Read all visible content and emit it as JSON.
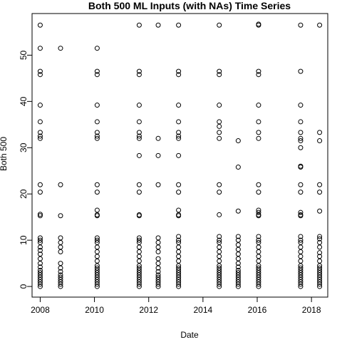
{
  "chart_data": {
    "type": "scatter",
    "title": "Both 500 ML Inputs (with NAs) Time Series",
    "xlabel": "Date",
    "ylabel": "Both 500",
    "x_axis": {
      "ticks": [
        2008,
        2010,
        2012,
        2014,
        2016,
        2018
      ],
      "range": [
        2007.7,
        2018.6
      ]
    },
    "y_axis": {
      "ticks": [
        0,
        10,
        20,
        30,
        40,
        50
      ],
      "range": [
        -2.3,
        59
      ]
    },
    "grid": false,
    "legend": "none",
    "marker": "open-circle",
    "series": [
      {
        "points": [
          [
            2008.0,
            56.5
          ],
          [
            2008.0,
            51.5
          ],
          [
            2008.0,
            46.5
          ],
          [
            2008.0,
            45.8
          ],
          [
            2008.0,
            39.2
          ],
          [
            2008.0,
            35.6
          ],
          [
            2008.0,
            33.3
          ],
          [
            2008.0,
            32.5
          ],
          [
            2008.0,
            32.0
          ],
          [
            2008.0,
            22.0
          ],
          [
            2008.0,
            20.4
          ],
          [
            2008.0,
            15.6
          ],
          [
            2008.0,
            15.3
          ],
          [
            2008.0,
            10.5
          ],
          [
            2008.0,
            10.0
          ],
          [
            2008.0,
            9.5
          ],
          [
            2008.0,
            8.5
          ],
          [
            2008.0,
            7.8
          ],
          [
            2008.0,
            7.0
          ],
          [
            2008.0,
            6.0
          ],
          [
            2008.0,
            5.0
          ],
          [
            2008.0,
            4.2
          ],
          [
            2008.0,
            3.5
          ],
          [
            2008.0,
            3.0
          ],
          [
            2008.0,
            2.5
          ],
          [
            2008.0,
            2.0
          ],
          [
            2008.0,
            1.5
          ],
          [
            2008.0,
            1.0
          ],
          [
            2008.0,
            0.5
          ],
          [
            2008.0,
            0.0
          ],
          [
            2008.75,
            51.5
          ],
          [
            2008.75,
            22.0
          ],
          [
            2008.75,
            15.3
          ],
          [
            2008.75,
            10.5
          ],
          [
            2008.75,
            9.5
          ],
          [
            2008.75,
            8.5
          ],
          [
            2008.75,
            7.5
          ],
          [
            2008.75,
            5.0
          ],
          [
            2008.75,
            4.0
          ],
          [
            2008.75,
            3.2
          ],
          [
            2008.75,
            2.5
          ],
          [
            2008.75,
            2.0
          ],
          [
            2008.75,
            1.5
          ],
          [
            2008.75,
            1.0
          ],
          [
            2008.75,
            0.5
          ],
          [
            2008.75,
            0.0
          ],
          [
            2010.1,
            51.5
          ],
          [
            2010.1,
            46.5
          ],
          [
            2010.1,
            45.8
          ],
          [
            2010.1,
            39.2
          ],
          [
            2010.1,
            35.6
          ],
          [
            2010.1,
            33.3
          ],
          [
            2010.1,
            32.5
          ],
          [
            2010.1,
            32.0
          ],
          [
            2010.1,
            22.0
          ],
          [
            2010.1,
            20.4
          ],
          [
            2010.1,
            16.5
          ],
          [
            2010.1,
            15.5
          ],
          [
            2010.1,
            15.3
          ],
          [
            2010.1,
            10.5
          ],
          [
            2010.1,
            10.0
          ],
          [
            2010.1,
            9.5
          ],
          [
            2010.1,
            8.5
          ],
          [
            2010.1,
            7.5
          ],
          [
            2010.1,
            6.5
          ],
          [
            2010.1,
            5.5
          ],
          [
            2010.1,
            4.5
          ],
          [
            2010.1,
            4.0
          ],
          [
            2010.1,
            3.5
          ],
          [
            2010.1,
            3.0
          ],
          [
            2010.1,
            2.5
          ],
          [
            2010.1,
            2.0
          ],
          [
            2010.1,
            1.5
          ],
          [
            2010.1,
            1.0
          ],
          [
            2010.1,
            0.5
          ],
          [
            2010.1,
            0.0
          ],
          [
            2011.65,
            56.5
          ],
          [
            2011.65,
            46.5
          ],
          [
            2011.65,
            45.8
          ],
          [
            2011.65,
            39.2
          ],
          [
            2011.65,
            35.6
          ],
          [
            2011.65,
            33.3
          ],
          [
            2011.65,
            32.5
          ],
          [
            2011.65,
            32.0
          ],
          [
            2011.65,
            28.3
          ],
          [
            2011.65,
            22.0
          ],
          [
            2011.65,
            20.4
          ],
          [
            2011.65,
            15.5
          ],
          [
            2011.65,
            15.3
          ],
          [
            2011.65,
            10.5
          ],
          [
            2011.65,
            10.0
          ],
          [
            2011.65,
            9.5
          ],
          [
            2011.65,
            8.5
          ],
          [
            2011.65,
            7.5
          ],
          [
            2011.65,
            6.5
          ],
          [
            2011.65,
            5.5
          ],
          [
            2011.65,
            4.5
          ],
          [
            2011.65,
            4.0
          ],
          [
            2011.65,
            3.5
          ],
          [
            2011.65,
            3.0
          ],
          [
            2011.65,
            2.5
          ],
          [
            2011.65,
            2.0
          ],
          [
            2011.65,
            1.5
          ],
          [
            2011.65,
            1.0
          ],
          [
            2011.65,
            0.5
          ],
          [
            2011.65,
            0.0
          ],
          [
            2012.35,
            56.5
          ],
          [
            2012.35,
            32.0
          ],
          [
            2012.35,
            28.3
          ],
          [
            2012.35,
            22.0
          ],
          [
            2012.35,
            10.5
          ],
          [
            2012.35,
            9.5
          ],
          [
            2012.35,
            8.5
          ],
          [
            2012.35,
            7.5
          ],
          [
            2012.35,
            6.0
          ],
          [
            2012.35,
            5.0
          ],
          [
            2012.35,
            4.0
          ],
          [
            2012.35,
            3.2
          ],
          [
            2012.35,
            2.5
          ],
          [
            2012.35,
            2.0
          ],
          [
            2012.35,
            1.5
          ],
          [
            2012.35,
            1.0
          ],
          [
            2012.35,
            0.5
          ],
          [
            2012.35,
            0.0
          ],
          [
            2013.1,
            56.5
          ],
          [
            2013.1,
            46.5
          ],
          [
            2013.1,
            45.8
          ],
          [
            2013.1,
            39.2
          ],
          [
            2013.1,
            35.6
          ],
          [
            2013.1,
            33.3
          ],
          [
            2013.1,
            32.5
          ],
          [
            2013.1,
            32.0
          ],
          [
            2013.1,
            28.3
          ],
          [
            2013.1,
            22.0
          ],
          [
            2013.1,
            20.4
          ],
          [
            2013.1,
            16.5
          ],
          [
            2013.1,
            15.5
          ],
          [
            2013.1,
            15.3
          ],
          [
            2013.1,
            10.8
          ],
          [
            2013.1,
            10.0
          ],
          [
            2013.1,
            9.5
          ],
          [
            2013.1,
            8.5
          ],
          [
            2013.1,
            7.5
          ],
          [
            2013.1,
            6.5
          ],
          [
            2013.1,
            5.5
          ],
          [
            2013.1,
            4.5
          ],
          [
            2013.1,
            4.0
          ],
          [
            2013.1,
            3.5
          ],
          [
            2013.1,
            3.0
          ],
          [
            2013.1,
            2.5
          ],
          [
            2013.1,
            2.0
          ],
          [
            2013.1,
            1.5
          ],
          [
            2013.1,
            1.0
          ],
          [
            2013.1,
            0.5
          ],
          [
            2013.1,
            0.0
          ],
          [
            2014.6,
            56.5
          ],
          [
            2014.6,
            46.5
          ],
          [
            2014.6,
            45.8
          ],
          [
            2014.6,
            39.2
          ],
          [
            2014.6,
            35.6
          ],
          [
            2014.6,
            34.6
          ],
          [
            2014.6,
            33.3
          ],
          [
            2014.6,
            32.0
          ],
          [
            2014.6,
            22.0
          ],
          [
            2014.6,
            20.4
          ],
          [
            2014.6,
            15.5
          ],
          [
            2014.6,
            10.8
          ],
          [
            2014.6,
            10.0
          ],
          [
            2014.6,
            9.5
          ],
          [
            2014.6,
            8.5
          ],
          [
            2014.6,
            7.5
          ],
          [
            2014.6,
            6.5
          ],
          [
            2014.6,
            5.5
          ],
          [
            2014.6,
            4.5
          ],
          [
            2014.6,
            4.0
          ],
          [
            2014.6,
            3.5
          ],
          [
            2014.6,
            3.0
          ],
          [
            2014.6,
            2.5
          ],
          [
            2014.6,
            2.0
          ],
          [
            2014.6,
            1.5
          ],
          [
            2014.6,
            1.0
          ],
          [
            2014.6,
            0.5
          ],
          [
            2014.6,
            0.0
          ],
          [
            2015.3,
            31.5
          ],
          [
            2015.3,
            25.8
          ],
          [
            2015.3,
            16.3
          ],
          [
            2015.3,
            10.8
          ],
          [
            2015.3,
            10.0
          ],
          [
            2015.3,
            9.0
          ],
          [
            2015.3,
            8.0
          ],
          [
            2015.3,
            7.0
          ],
          [
            2015.3,
            6.0
          ],
          [
            2015.3,
            5.0
          ],
          [
            2015.3,
            4.2
          ],
          [
            2015.3,
            3.5
          ],
          [
            2015.3,
            3.0
          ],
          [
            2015.3,
            2.5
          ],
          [
            2015.3,
            2.0
          ],
          [
            2015.3,
            1.5
          ],
          [
            2015.3,
            1.0
          ],
          [
            2015.3,
            0.5
          ],
          [
            2015.3,
            0.0
          ],
          [
            2016.05,
            56.5
          ],
          [
            2016.05,
            56.7
          ],
          [
            2016.05,
            46.5
          ],
          [
            2016.05,
            45.8
          ],
          [
            2016.05,
            39.2
          ],
          [
            2016.05,
            35.6
          ],
          [
            2016.05,
            33.3
          ],
          [
            2016.05,
            32.0
          ],
          [
            2016.05,
            22.0
          ],
          [
            2016.05,
            20.4
          ],
          [
            2016.05,
            16.5
          ],
          [
            2016.05,
            16.0
          ],
          [
            2016.05,
            15.5
          ],
          [
            2016.05,
            15.3
          ],
          [
            2016.05,
            10.8
          ],
          [
            2016.05,
            10.0
          ],
          [
            2016.05,
            9.5
          ],
          [
            2016.05,
            8.5
          ],
          [
            2016.05,
            7.5
          ],
          [
            2016.05,
            6.5
          ],
          [
            2016.05,
            5.5
          ],
          [
            2016.05,
            4.5
          ],
          [
            2016.05,
            4.0
          ],
          [
            2016.05,
            3.5
          ],
          [
            2016.05,
            3.0
          ],
          [
            2016.05,
            2.5
          ],
          [
            2016.05,
            2.0
          ],
          [
            2016.05,
            1.5
          ],
          [
            2016.05,
            1.0
          ],
          [
            2016.05,
            0.5
          ],
          [
            2016.05,
            0.0
          ],
          [
            2017.6,
            56.5
          ],
          [
            2017.6,
            46.5
          ],
          [
            2017.6,
            39.2
          ],
          [
            2017.6,
            35.6
          ],
          [
            2017.6,
            33.3
          ],
          [
            2017.6,
            32.0
          ],
          [
            2017.6,
            31.5
          ],
          [
            2017.6,
            30.0
          ],
          [
            2017.6,
            26.0
          ],
          [
            2017.6,
            25.8
          ],
          [
            2017.6,
            22.0
          ],
          [
            2017.6,
            20.4
          ],
          [
            2017.6,
            16.0
          ],
          [
            2017.6,
            15.5
          ],
          [
            2017.6,
            15.3
          ],
          [
            2017.6,
            10.8
          ],
          [
            2017.6,
            10.0
          ],
          [
            2017.6,
            9.5
          ],
          [
            2017.6,
            8.5
          ],
          [
            2017.6,
            7.5
          ],
          [
            2017.6,
            6.5
          ],
          [
            2017.6,
            5.5
          ],
          [
            2017.6,
            4.5
          ],
          [
            2017.6,
            4.0
          ],
          [
            2017.6,
            3.5
          ],
          [
            2017.6,
            3.0
          ],
          [
            2017.6,
            2.5
          ],
          [
            2017.6,
            2.0
          ],
          [
            2017.6,
            1.5
          ],
          [
            2017.6,
            1.0
          ],
          [
            2017.6,
            0.5
          ],
          [
            2017.6,
            0.0
          ],
          [
            2018.3,
            56.5
          ],
          [
            2018.3,
            33.3
          ],
          [
            2018.3,
            31.5
          ],
          [
            2018.3,
            22.0
          ],
          [
            2018.3,
            20.4
          ],
          [
            2018.3,
            16.3
          ],
          [
            2018.3,
            10.8
          ],
          [
            2018.3,
            10.3
          ],
          [
            2018.3,
            9.5
          ],
          [
            2018.3,
            8.5
          ],
          [
            2018.3,
            7.3
          ],
          [
            2018.3,
            6.5
          ],
          [
            2018.3,
            5.5
          ],
          [
            2018.3,
            4.5
          ],
          [
            2018.3,
            4.0
          ],
          [
            2018.3,
            3.5
          ],
          [
            2018.3,
            3.0
          ],
          [
            2018.3,
            2.5
          ],
          [
            2018.3,
            2.0
          ],
          [
            2018.3,
            1.5
          ],
          [
            2018.3,
            1.0
          ],
          [
            2018.3,
            0.5
          ],
          [
            2018.3,
            0.0
          ]
        ]
      }
    ]
  }
}
